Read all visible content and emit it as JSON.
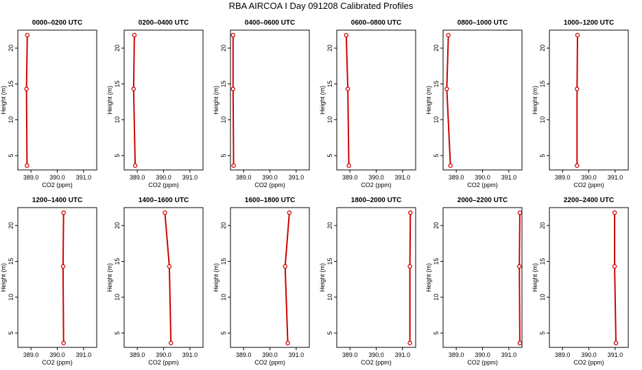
{
  "figure": {
    "title": "RBA AIRCOA I  Day 091208  Calibrated Profiles"
  },
  "colors": {
    "profile_line": "#d00000",
    "axes": "#000000",
    "background": "#ffffff"
  },
  "chart_data": [
    {
      "type": "line",
      "title": "0000–0200 UTC",
      "xlabel": "CO2 (ppm)",
      "ylabel": "Height (m)",
      "xlim": [
        388.5,
        391.5
      ],
      "ylim": [
        3,
        22.5
      ],
      "x_ticks": [
        "389.0",
        "390.0",
        "391.0"
      ],
      "y_ticks": [
        "5",
        "10",
        "15",
        "20"
      ],
      "series": [
        {
          "x": [
            388.85,
            388.83,
            388.86
          ],
          "y": [
            3.6,
            14.3,
            21.8
          ]
        }
      ]
    },
    {
      "type": "line",
      "title": "0200–0400 UTC",
      "xlabel": "CO2 (ppm)",
      "ylabel": "Height (m)",
      "xlim": [
        388.5,
        391.5
      ],
      "ylim": [
        3,
        22.5
      ],
      "x_ticks": [
        "389.0",
        "390.0",
        "391.0"
      ],
      "y_ticks": [
        "5",
        "10",
        "15",
        "20"
      ],
      "series": [
        {
          "x": [
            388.92,
            388.86,
            388.89
          ],
          "y": [
            3.6,
            14.3,
            21.8
          ]
        }
      ]
    },
    {
      "type": "line",
      "title": "0400–0600 UTC",
      "xlabel": "CO2 (ppm)",
      "ylabel": "Height (m)",
      "xlim": [
        388.5,
        391.5
      ],
      "ylim": [
        3,
        22.5
      ],
      "x_ticks": [
        "389.0",
        "390.0",
        "391.0"
      ],
      "y_ticks": [
        "5",
        "10",
        "15",
        "20"
      ],
      "series": [
        {
          "x": [
            388.62,
            388.6,
            388.6
          ],
          "y": [
            3.6,
            14.3,
            21.8
          ]
        }
      ]
    },
    {
      "type": "line",
      "title": "0600–0800 UTC",
      "xlabel": "CO2 (ppm)",
      "ylabel": "Height (m)",
      "xlim": [
        388.5,
        391.5
      ],
      "ylim": [
        3,
        22.5
      ],
      "x_ticks": [
        "389.0",
        "390.0",
        "391.0"
      ],
      "y_ticks": [
        "5",
        "10",
        "15",
        "20"
      ],
      "series": [
        {
          "x": [
            388.96,
            388.92,
            388.86
          ],
          "y": [
            3.6,
            14.3,
            21.8
          ]
        }
      ]
    },
    {
      "type": "line",
      "title": "0800–1000 UTC",
      "xlabel": "CO2 (ppm)",
      "ylabel": "Height (m)",
      "xlim": [
        388.5,
        391.5
      ],
      "ylim": [
        3,
        22.5
      ],
      "x_ticks": [
        "389.0",
        "390.0",
        "391.0"
      ],
      "y_ticks": [
        "5",
        "10",
        "15",
        "20"
      ],
      "series": [
        {
          "x": [
            388.78,
            388.64,
            388.7
          ],
          "y": [
            3.6,
            14.3,
            21.8
          ]
        }
      ]
    },
    {
      "type": "line",
      "title": "1000–1200 UTC",
      "xlabel": "CO2 (ppm)",
      "ylabel": "Height (m)",
      "xlim": [
        388.5,
        391.5
      ],
      "ylim": [
        3,
        22.5
      ],
      "x_ticks": [
        "389.0",
        "390.0",
        "391.0"
      ],
      "y_ticks": [
        "5",
        "10",
        "15",
        "20"
      ],
      "series": [
        {
          "x": [
            389.55,
            389.55,
            389.57
          ],
          "y": [
            3.6,
            14.3,
            21.8
          ]
        }
      ]
    },
    {
      "type": "line",
      "title": "1200–1400 UTC",
      "xlabel": "CO2 (ppm)",
      "ylabel": "Height (m)",
      "xlim": [
        388.5,
        391.5
      ],
      "ylim": [
        3,
        22.5
      ],
      "x_ticks": [
        "389.0",
        "390.0",
        "391.0"
      ],
      "y_ticks": [
        "5",
        "10",
        "15",
        "20"
      ],
      "series": [
        {
          "x": [
            390.24,
            390.22,
            390.24
          ],
          "y": [
            3.6,
            14.3,
            21.8
          ]
        }
      ]
    },
    {
      "type": "line",
      "title": "1400–1600 UTC",
      "xlabel": "CO2 (ppm)",
      "ylabel": "Height (m)",
      "xlim": [
        388.5,
        391.5
      ],
      "ylim": [
        3,
        22.5
      ],
      "x_ticks": [
        "389.0",
        "390.0",
        "391.0"
      ],
      "y_ticks": [
        "5",
        "10",
        "15",
        "20"
      ],
      "series": [
        {
          "x": [
            390.28,
            390.22,
            390.05
          ],
          "y": [
            3.6,
            14.3,
            21.8
          ]
        }
      ]
    },
    {
      "type": "line",
      "title": "1600–1800 UTC",
      "xlabel": "CO2 (ppm)",
      "ylabel": "Height (m)",
      "xlim": [
        388.5,
        391.5
      ],
      "ylim": [
        3,
        22.5
      ],
      "x_ticks": [
        "389.0",
        "390.0",
        "391.0"
      ],
      "y_ticks": [
        "5",
        "10",
        "15",
        "20"
      ],
      "series": [
        {
          "x": [
            390.68,
            390.58,
            390.74
          ],
          "y": [
            3.6,
            14.3,
            21.8
          ]
        }
      ]
    },
    {
      "type": "line",
      "title": "1800–2000 UTC",
      "xlabel": "CO2 (ppm)",
      "ylabel": "Height (m)",
      "xlim": [
        388.5,
        391.5
      ],
      "ylim": [
        3,
        22.5
      ],
      "x_ticks": [
        "389.0",
        "390.0",
        "391.0"
      ],
      "y_ticks": [
        "5",
        "10",
        "15",
        "20"
      ],
      "series": [
        {
          "x": [
            391.28,
            391.28,
            391.3
          ],
          "y": [
            3.6,
            14.3,
            21.8
          ]
        }
      ]
    },
    {
      "type": "line",
      "title": "2000–2200 UTC",
      "xlabel": "CO2 (ppm)",
      "ylabel": "Height (m)",
      "xlim": [
        388.5,
        391.5
      ],
      "ylim": [
        3,
        22.5
      ],
      "x_ticks": [
        "389.0",
        "390.0",
        "391.0"
      ],
      "y_ticks": [
        "5",
        "10",
        "15",
        "20"
      ],
      "series": [
        {
          "x": [
            391.42,
            391.4,
            391.42
          ],
          "y": [
            3.6,
            14.3,
            21.8
          ]
        }
      ]
    },
    {
      "type": "line",
      "title": "2200–2400 UTC",
      "xlabel": "CO2 (ppm)",
      "ylabel": "Height (m)",
      "xlim": [
        388.5,
        391.5
      ],
      "ylim": [
        3,
        22.5
      ],
      "x_ticks": [
        "389.0",
        "390.0",
        "391.0"
      ],
      "y_ticks": [
        "5",
        "10",
        "15",
        "20"
      ],
      "series": [
        {
          "x": [
            391.03,
            390.98,
            390.98
          ],
          "y": [
            3.6,
            14.3,
            21.8
          ]
        }
      ]
    }
  ]
}
